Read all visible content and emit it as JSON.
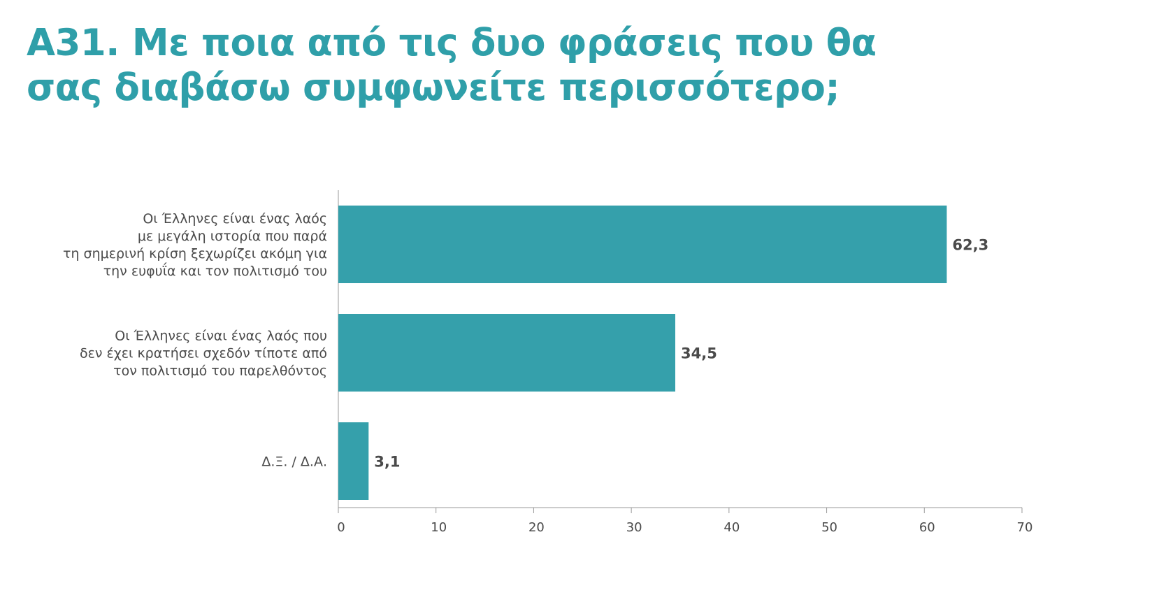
{
  "title_lines": [
    "Α31. Με ποια από τις δυο φράσεις που θα",
    "σας διαβάσω συμφωνείτε περισσότερο;"
  ],
  "colors": {
    "title": "#2f9fa9",
    "bar": "#35a0ab",
    "axis": "#9a9a9a",
    "text": "#4a4a4a"
  },
  "chart_data": {
    "type": "bar",
    "orientation": "horizontal",
    "categories": [
      [
        "Οι Έλληνες είναι ένας λαός",
        "με μεγάλη ιστορία που παρά",
        "τη σημερινή κρίση ξεχωρίζει ακόμη για",
        "την ευφυΐα και τον πολιτισμό του"
      ],
      [
        "Οι Έλληνες είναι ένας λαός που",
        "δεν έχει κρατήσει σχεδόν τίποτε από",
        "τον πολιτισμό του παρελθόντος"
      ],
      [
        "Δ.Ξ. / Δ.Α."
      ]
    ],
    "values": [
      62.3,
      34.5,
      3.1
    ],
    "value_labels": [
      "62,3",
      "34,5",
      "3,1"
    ],
    "xlim": [
      0,
      70
    ],
    "xticks": [
      0,
      10,
      20,
      30,
      40,
      50,
      60,
      70
    ],
    "grid": false
  }
}
